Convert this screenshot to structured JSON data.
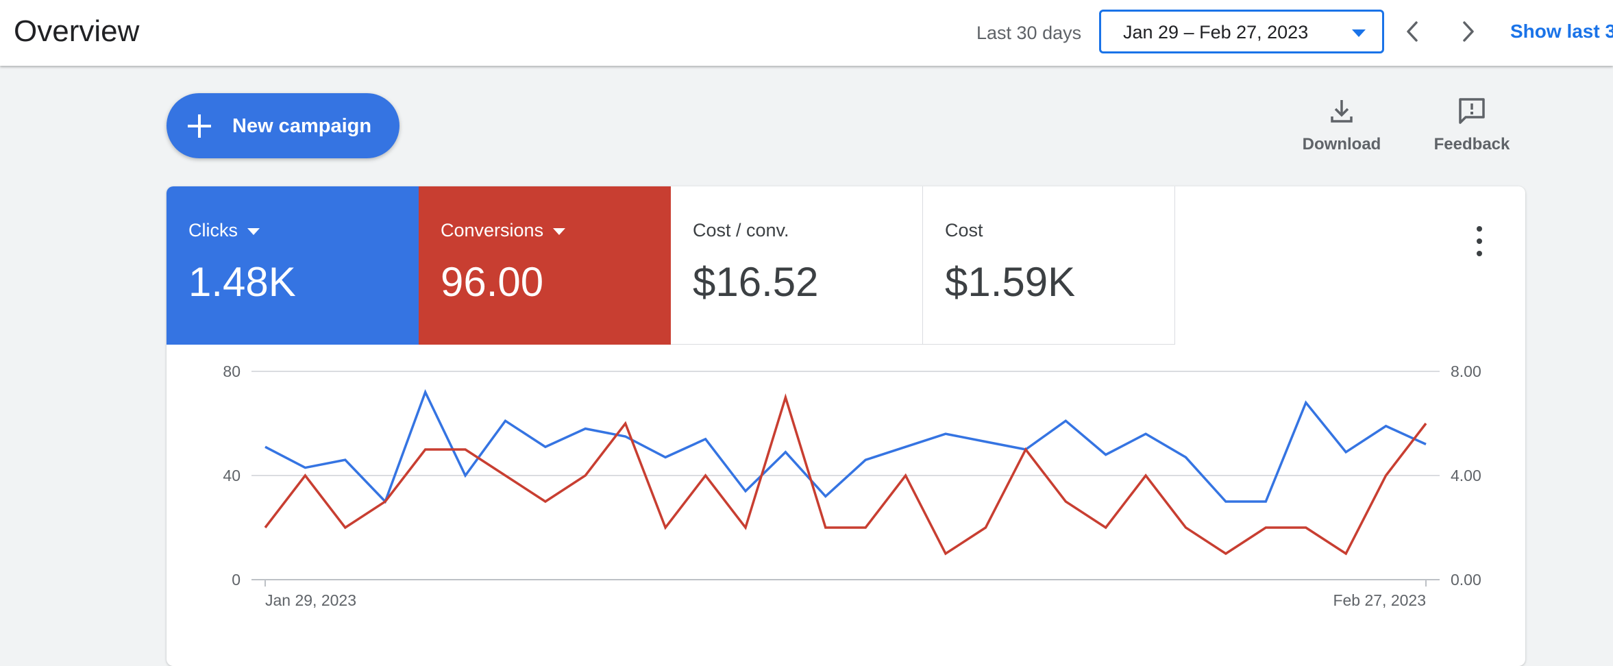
{
  "header": {
    "title": "Overview",
    "range_label": "Last 30 days",
    "date_range": "Jan 29 – Feb 27, 2023",
    "show_last": "Show last 3"
  },
  "toolbar": {
    "new_campaign_label": "New campaign",
    "download_label": "Download",
    "feedback_label": "Feedback"
  },
  "metrics": [
    {
      "name": "Clicks",
      "value": "1.48K",
      "color": "#3574e2"
    },
    {
      "name": "Conversions",
      "value": "96.00",
      "color": "#c83e31"
    },
    {
      "name": "Cost / conv.",
      "value": "$16.52"
    },
    {
      "name": "Cost",
      "value": "$1.59K"
    }
  ],
  "chart_data": {
    "type": "line",
    "x_start_label": "Jan 29, 2023",
    "x_end_label": "Feb 27, 2023",
    "left_axis": {
      "ticks": [
        "80",
        "40",
        "0"
      ],
      "ylim": [
        0,
        80
      ]
    },
    "right_axis": {
      "ticks": [
        "8.00",
        "4.00",
        "0.00"
      ],
      "ylim": [
        0,
        8
      ]
    },
    "grid": true,
    "series": [
      {
        "name": "Clicks",
        "axis": "left",
        "color": "#3574e2",
        "values": [
          51,
          43,
          46,
          30,
          72,
          40,
          61,
          51,
          58,
          55,
          47,
          54,
          34,
          49,
          32,
          46,
          51,
          56,
          53,
          50,
          61,
          48,
          56,
          47,
          30,
          30,
          68,
          49,
          59,
          52
        ]
      },
      {
        "name": "Conversions",
        "axis": "right",
        "color": "#c83e31",
        "values": [
          2,
          4,
          2,
          3,
          5,
          5,
          4,
          3,
          4,
          6,
          2,
          4,
          2,
          7,
          2,
          2,
          4,
          1,
          2,
          5,
          3,
          2,
          4,
          2,
          1,
          2,
          2,
          1,
          4,
          6
        ]
      }
    ]
  }
}
